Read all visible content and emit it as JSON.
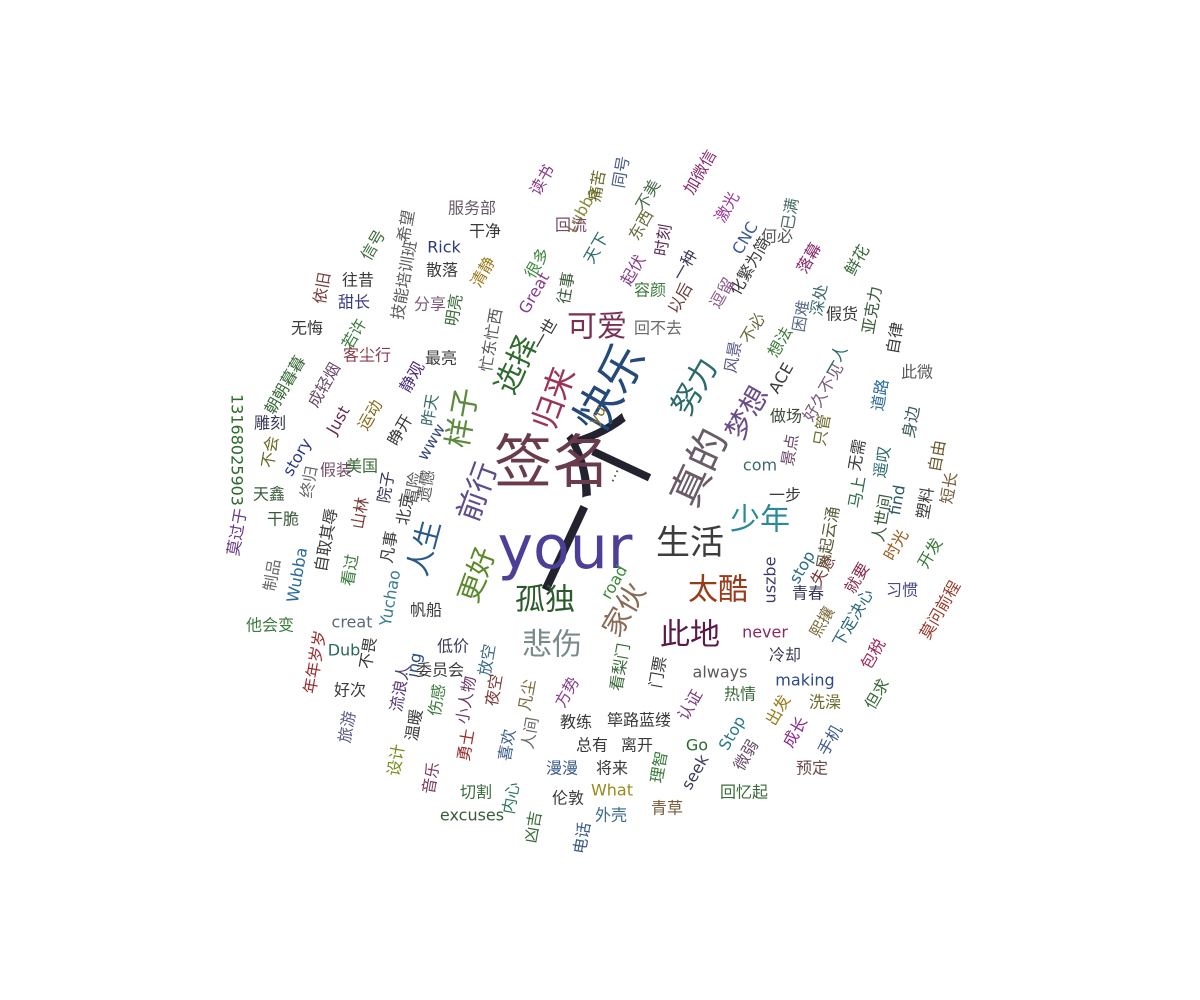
{
  "word_cloud": {
    "words": [
      {
        "text": "一个",
        "color": "#23232f"
      },
      {
        "text": "your",
        "color": "#4b3f98"
      },
      {
        "text": "签名",
        "color": "#6a3b4d"
      },
      {
        "text": "快乐",
        "color": "#244a7c"
      },
      {
        "text": "真的",
        "color": "#6a5b66"
      },
      {
        "text": "生活",
        "color": "#3d3d3d"
      },
      {
        "text": "前行",
        "color": "#5e4c8c"
      },
      {
        "text": "样子",
        "color": "#5d8a3e"
      },
      {
        "text": "归来",
        "color": "#9a3558"
      },
      {
        "text": "选择",
        "color": "#2f6a2f"
      },
      {
        "text": "可爱",
        "color": "#7a2f55"
      },
      {
        "text": "努力",
        "color": "#2a6a6a"
      },
      {
        "text": "梦想",
        "color": "#6a4b8c"
      },
      {
        "text": "少年",
        "color": "#2a8a95"
      },
      {
        "text": "人生",
        "color": "#2a5a8a"
      },
      {
        "text": "更好",
        "color": "#5a8a2a"
      },
      {
        "text": "孤独",
        "color": "#2d5a2d"
      },
      {
        "text": "家伙",
        "color": "#8a6a55"
      },
      {
        "text": "太酷",
        "color": "#9a3a1a"
      },
      {
        "text": "悲伤",
        "color": "#7a8a8a"
      },
      {
        "text": "此地",
        "color": "#5a1a4a"
      },
      {
        "text": "...",
        "color": "#555555"
      },
      {
        "text": "yu",
        "color": "#8a6a2a"
      },
      {
        "text": "com",
        "color": "#3a6a6a"
      },
      {
        "text": "www",
        "color": "#3a4a7a"
      },
      {
        "text": "road",
        "color": "#3a8a3a"
      },
      {
        "text": "uszbe",
        "color": "#3a3a6a"
      },
      {
        "text": "never",
        "color": "#8a2a5a"
      },
      {
        "text": "always",
        "color": "#5a5a5a"
      },
      {
        "text": "making",
        "color": "#2a4a8a"
      },
      {
        "text": "Stop",
        "color": "#2a7a8a"
      },
      {
        "text": "Go",
        "color": "#2a6a2a"
      },
      {
        "text": "seek",
        "color": "#3a3a5a"
      },
      {
        "text": "What",
        "color": "#9a8a1a"
      },
      {
        "text": "excuses",
        "color": "#3a5a3a"
      },
      {
        "text": "creat",
        "color": "#5a6a7a"
      },
      {
        "text": "Dub",
        "color": "#2a6a5a"
      },
      {
        "text": "ing",
        "color": "#2a4a8a"
      },
      {
        "text": "Yuchao",
        "color": "#3a7a9a"
      },
      {
        "text": "Wubba",
        "color": "#2a6a9a"
      },
      {
        "text": "story",
        "color": "#2a3a8a"
      },
      {
        "text": "Just",
        "color": "#6a2a4a"
      },
      {
        "text": "Rick",
        "color": "#2a3a7a"
      },
      {
        "text": "Great",
        "color": "#8a3a8a"
      },
      {
        "text": "Lubba",
        "color": "#8a8a3a"
      },
      {
        "text": "CNC",
        "color": "#3a5a9a"
      },
      {
        "text": "ACE",
        "color": "#3a3a3a"
      },
      {
        "text": "find",
        "color": "#2a5a6a"
      },
      {
        "text": "stop",
        "color": "#2a6a8a"
      },
      {
        "text": "13168025903",
        "color": "#2a6a2a"
      },
      {
        "text": "服务部",
        "color": "#6a5a6a"
      },
      {
        "text": "干净",
        "color": "#3a3a3a"
      },
      {
        "text": "很多",
        "color": "#3a8a3a"
      },
      {
        "text": "回流",
        "color": "#7a4a6a"
      },
      {
        "text": "天下",
        "color": "#2a6a6a"
      },
      {
        "text": "东西",
        "color": "#6a6a3a"
      },
      {
        "text": "时刻",
        "color": "#5a2a5a"
      },
      {
        "text": "一种",
        "color": "#3a3a5a"
      },
      {
        "text": "不美",
        "color": "#4a6a4a"
      },
      {
        "text": "加微信",
        "color": "#8a2a6a"
      },
      {
        "text": "同号",
        "color": "#4a5a8a"
      },
      {
        "text": "痛苦",
        "color": "#6a6a2a"
      },
      {
        "text": "读书",
        "color": "#8a3a8a"
      },
      {
        "text": "激光",
        "color": "#9a3a9a"
      },
      {
        "text": "化繁为简",
        "color": "#3a3a3a"
      },
      {
        "text": "何必",
        "color": "#5a5a5a"
      },
      {
        "text": "已满",
        "color": "#4a6a6a"
      },
      {
        "text": "落幕",
        "color": "#8a2a6a"
      },
      {
        "text": "鲜花",
        "color": "#3a6a3a"
      },
      {
        "text": "亚克力",
        "color": "#3a5a3a"
      },
      {
        "text": "自律",
        "color": "#3a3a3a"
      },
      {
        "text": "此微",
        "color": "#5a5a5a"
      },
      {
        "text": "身边",
        "color": "#3a5a5a"
      },
      {
        "text": "自由",
        "color": "#6a5a2a"
      },
      {
        "text": "短长",
        "color": "#7a5a3a"
      },
      {
        "text": "塑料",
        "color": "#3a3a3a"
      },
      {
        "text": "开发",
        "color": "#3a7a3a"
      },
      {
        "text": "习惯",
        "color": "#4a4a8a"
      },
      {
        "text": "莫问前程",
        "color": "#9a3a2a"
      },
      {
        "text": "包税",
        "color": "#9a2a5a"
      },
      {
        "text": "但求",
        "color": "#3a6a3a"
      },
      {
        "text": "洗澡",
        "color": "#6a6a2a"
      },
      {
        "text": "手机",
        "color": "#3a5a8a"
      },
      {
        "text": "预定",
        "color": "#6a4a4a"
      },
      {
        "text": "成长",
        "color": "#8a2a8a"
      },
      {
        "text": "微弱",
        "color": "#6a4a6a"
      },
      {
        "text": "出发",
        "color": "#9a7a1a"
      },
      {
        "text": "热情",
        "color": "#3a6a3a"
      },
      {
        "text": "认证",
        "color": "#7a3a7a"
      },
      {
        "text": "冷却",
        "color": "#3a3a5a"
      },
      {
        "text": "熙攘",
        "color": "#7a6a3a"
      },
      {
        "text": "下定决心",
        "color": "#2a6a7a"
      },
      {
        "text": "就要",
        "color": "#8a2a4a"
      },
      {
        "text": "时光",
        "color": "#9a5a1a"
      },
      {
        "text": "青春",
        "color": "#3a3a5a"
      },
      {
        "text": "失意",
        "color": "#7a3a3a"
      },
      {
        "text": "风起云涌",
        "color": "#5a5a3a"
      },
      {
        "text": "一步",
        "color": "#3a3a3a"
      },
      {
        "text": "马上",
        "color": "#2a6a4a"
      },
      {
        "text": "人世间",
        "color": "#3a5a3a"
      },
      {
        "text": "无需",
        "color": "#3a3a3a"
      },
      {
        "text": "遥叹",
        "color": "#2a6a6a"
      },
      {
        "text": "道路",
        "color": "#2a6a9a"
      },
      {
        "text": "只管",
        "color": "#6a6a2a"
      },
      {
        "text": "好久不见",
        "color": "#7a5a7a"
      },
      {
        "text": "做场",
        "color": "#3a4a3a"
      },
      {
        "text": "景点",
        "color": "#6a4a6a"
      },
      {
        "text": "假货",
        "color": "#3a3a3a"
      },
      {
        "text": "一人",
        "color": "#2a6a6a"
      },
      {
        "text": "深处",
        "color": "#3a6a6a"
      },
      {
        "text": "困难",
        "color": "#5a6a8a"
      },
      {
        "text": "想法",
        "color": "#3a7a3a"
      },
      {
        "text": "不必",
        "color": "#6a6a3a"
      },
      {
        "text": "风景",
        "color": "#5a5a8a"
      },
      {
        "text": "逗留",
        "color": "#8a5a8a"
      },
      {
        "text": "以后",
        "color": "#6a3a3a"
      },
      {
        "text": "容颜",
        "color": "#3a7a3a"
      },
      {
        "text": "回不去",
        "color": "#6a6a6a"
      },
      {
        "text": "起伏",
        "color": "#8a3a8a"
      },
      {
        "text": "往事",
        "color": "#3a5a3a"
      },
      {
        "text": "一世",
        "color": "#3a3a3a"
      },
      {
        "text": "清静",
        "color": "#9a7a1a"
      },
      {
        "text": "忙东忙西",
        "color": "#5a5a5a"
      },
      {
        "text": "分享",
        "color": "#7a5a7a"
      },
      {
        "text": "明亮",
        "color": "#3a6a3a"
      },
      {
        "text": "散落",
        "color": "#3a3a3a"
      },
      {
        "text": "最亮",
        "color": "#3a3a3a"
      },
      {
        "text": "静观",
        "color": "#4a2a7a"
      },
      {
        "text": "昨天",
        "color": "#3a6a6a"
      },
      {
        "text": "睁开",
        "color": "#3a3a3a"
      },
      {
        "text": "遗憾",
        "color": "#5a5a5a"
      },
      {
        "text": "运动",
        "color": "#8a6a1a"
      },
      {
        "text": "客尘行",
        "color": "#8a3a4a"
      },
      {
        "text": "往昔",
        "color": "#3a3a3a"
      },
      {
        "text": "甜长",
        "color": "#3a3a8a"
      },
      {
        "text": "若许",
        "color": "#3a7a3a"
      },
      {
        "text": "无悔",
        "color": "#3a3a3a"
      },
      {
        "text": "信号",
        "color": "#3a6a3a"
      },
      {
        "text": "希望",
        "color": "#5a5a5a"
      },
      {
        "text": "技能培训班",
        "color": "#5a5a5a"
      },
      {
        "text": "依旧",
        "color": "#7a3a3a"
      },
      {
        "text": "朝朝暮暮",
        "color": "#3a6a3a"
      },
      {
        "text": "成轻烟",
        "color": "#6a4a6a"
      },
      {
        "text": "雕刻",
        "color": "#3a3a5a"
      },
      {
        "text": "不会",
        "color": "#6a6a2a"
      },
      {
        "text": "假装",
        "color": "#7a4a6a"
      },
      {
        "text": "美国",
        "color": "#3a6a3a"
      },
      {
        "text": "院子",
        "color": "#3a3a5a"
      },
      {
        "text": "天鑫",
        "color": "#3a5a3a"
      },
      {
        "text": "终归",
        "color": "#6a6a6a"
      },
      {
        "text": "山林",
        "color": "#7a3a3a"
      },
      {
        "text": "北京",
        "color": "#3a3a3a"
      },
      {
        "text": "冒险",
        "color": "#5a5a5a"
      },
      {
        "text": "莫过于",
        "color": "#6a3a8a"
      },
      {
        "text": "干脆",
        "color": "#3a5a3a"
      },
      {
        "text": "自取其辱",
        "color": "#3a3a3a"
      },
      {
        "text": "凡事",
        "color": "#3a3a3a"
      },
      {
        "text": "看过",
        "color": "#3a7a3a"
      },
      {
        "text": "制品",
        "color": "#6a6a6a"
      },
      {
        "text": "帆船",
        "color": "#3a3a3a"
      },
      {
        "text": "他会变",
        "color": "#3a7a3a"
      },
      {
        "text": "年年岁岁",
        "color": "#9a2a2a"
      },
      {
        "text": "好次",
        "color": "#3a3a3a"
      },
      {
        "text": "不畏",
        "color": "#3a3a3a"
      },
      {
        "text": "低价",
        "color": "#3a3a5a"
      },
      {
        "text": "放空",
        "color": "#3a6a8a"
      },
      {
        "text": "委员会",
        "color": "#3a3a3a"
      },
      {
        "text": "流浪人",
        "color": "#5a3a7a"
      },
      {
        "text": "伤感",
        "color": "#3a7a3a"
      },
      {
        "text": "小人物",
        "color": "#6a3a6a"
      },
      {
        "text": "夜空",
        "color": "#7a3a3a"
      },
      {
        "text": "旅游",
        "color": "#5a5a8a"
      },
      {
        "text": "温暖",
        "color": "#3a3a3a"
      },
      {
        "text": "勇士",
        "color": "#9a2a2a"
      },
      {
        "text": "喜欢",
        "color": "#3a5a8a"
      },
      {
        "text": "设计",
        "color": "#7a8a1a"
      },
      {
        "text": "音乐",
        "color": "#7a3a5a"
      },
      {
        "text": "切割",
        "color": "#3a6a3a"
      },
      {
        "text": "内心",
        "color": "#2a7a5a"
      },
      {
        "text": "人间",
        "color": "#6a6a6a"
      },
      {
        "text": "凡尘",
        "color": "#7a6a3a"
      },
      {
        "text": "方势",
        "color": "#8a3a8a"
      },
      {
        "text": "看梨门",
        "color": "#3a6a3a"
      },
      {
        "text": "门票",
        "color": "#3a3a3a"
      },
      {
        "text": "教练",
        "color": "#3a3a3a"
      },
      {
        "text": "筚路蓝缕",
        "color": "#3a3a3a"
      },
      {
        "text": "总有",
        "color": "#3a3a3a"
      },
      {
        "text": "离开",
        "color": "#3a3a3a"
      },
      {
        "text": "理智",
        "color": "#3a7a3a"
      },
      {
        "text": "漫漫",
        "color": "#3a5a8a"
      },
      {
        "text": "将来",
        "color": "#3a3a3a"
      },
      {
        "text": "伦敦",
        "color": "#3a3a3a"
      },
      {
        "text": "回忆起",
        "color": "#3a6a3a"
      },
      {
        "text": "外壳",
        "color": "#3a6a8a"
      },
      {
        "text": "青草",
        "color": "#7a5a3a"
      },
      {
        "text": "凶吉",
        "color": "#3a6a3a"
      },
      {
        "text": "电话",
        "color": "#3a5a8a"
      }
    ]
  }
}
